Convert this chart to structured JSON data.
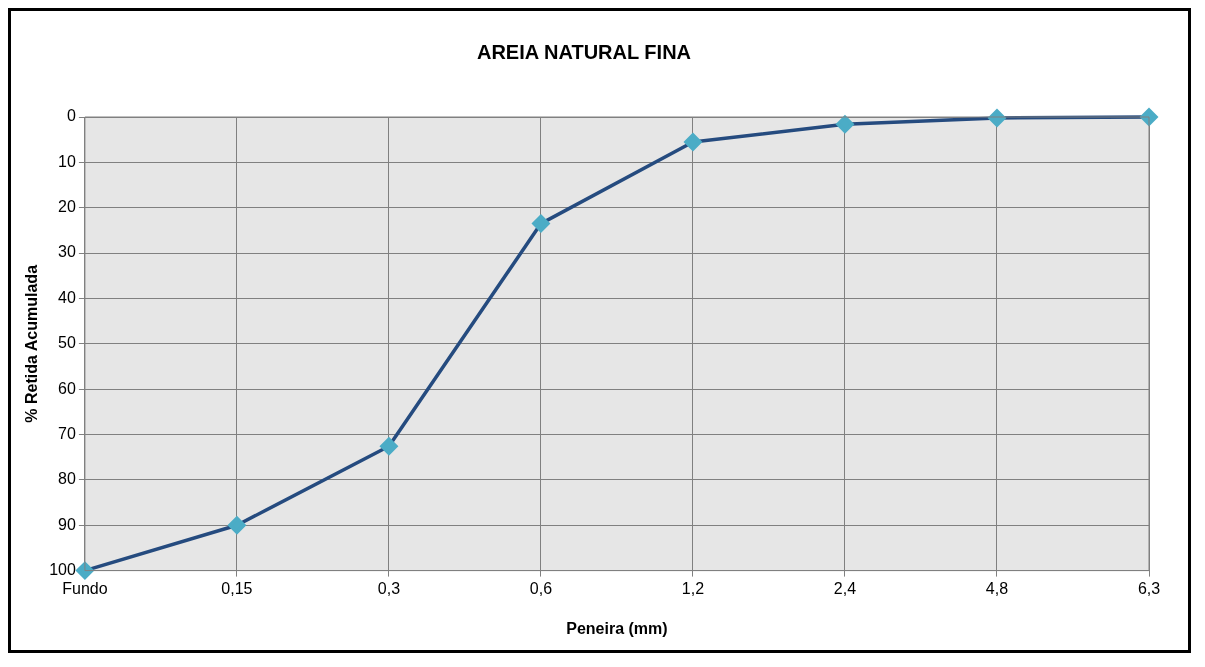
{
  "chart_data": {
    "type": "line",
    "title": "AREIA NATURAL FINA",
    "xlabel": "Peneira (mm)",
    "ylabel": "% Retida Acumulada",
    "categories": [
      "Fundo",
      "0,15",
      "0,3",
      "0,6",
      "1,2",
      "2,4",
      "4,8",
      "6,3"
    ],
    "series": [
      {
        "color": "#254b7f",
        "values": [
          100,
          90,
          72.6,
          23.5,
          5.5,
          1.6,
          0.2,
          0
        ]
      }
    ],
    "ylim": [
      100,
      0
    ],
    "yticks": [
      0,
      10,
      20,
      30,
      40,
      50,
      60,
      70,
      80,
      90,
      100
    ],
    "grid": true,
    "legend": false,
    "marker": "diamond",
    "line_style": "solid"
  }
}
